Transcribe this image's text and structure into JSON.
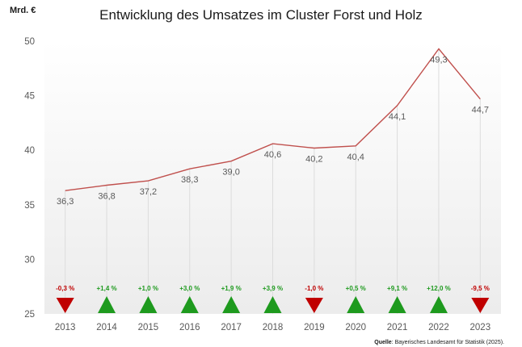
{
  "chart_data": {
    "type": "line",
    "title": "Entwicklung des Umsatzes im Cluster Forst und Holz",
    "ylabel": "Mrd. €",
    "xlabel": "",
    "ylim": [
      25,
      50
    ],
    "yticks": [
      "25",
      "30",
      "35",
      "40",
      "45",
      "50"
    ],
    "categories": [
      "2013",
      "2014",
      "2015",
      "2016",
      "2017",
      "2018",
      "2019",
      "2020",
      "2021",
      "2022",
      "2023"
    ],
    "values": [
      36.3,
      36.8,
      37.2,
      38.3,
      39.0,
      40.6,
      40.2,
      40.4,
      44.1,
      49.3,
      44.7
    ],
    "value_labels": [
      "36,3",
      "36,8",
      "37,2",
      "38,3",
      "39,0",
      "40,6",
      "40,2",
      "40,4",
      "44,1",
      "49,3",
      "44,7"
    ],
    "changes": [
      -0.3,
      1.4,
      1.0,
      3.0,
      1.9,
      3.9,
      -1.0,
      0.5,
      9.1,
      12.0,
      -9.5
    ],
    "change_labels": [
      "-0,3 %",
      "+1,4 %",
      "+1,0 %",
      "+3,0 %",
      "+1,9 %",
      "+3,9 %",
      "-1,0 %",
      "+0,5 %",
      "+9,1 %",
      "+12,0 %",
      "-9,5 %"
    ],
    "colors": {
      "line": "#c0504d",
      "up": "#1e9a1e",
      "down": "#c00000"
    },
    "grid": false,
    "legend": "none"
  },
  "source": {
    "label": "Quelle",
    "text": ": Bayerisches Landesamt für Statistik (2025)."
  }
}
